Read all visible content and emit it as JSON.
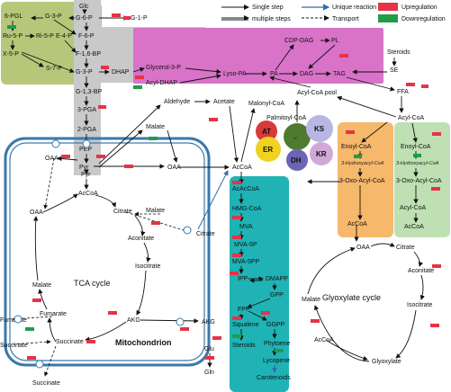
{
  "legend": {
    "single_step": "Single step",
    "multiple_steps": "multiple steps",
    "unique_reaction": "Unique reaction",
    "transport": "Transport",
    "upregulation": "Upregulation",
    "downregulation": "Downregulation",
    "up_color": "#e63347",
    "down_color": "#1f9d49"
  },
  "ppp": {
    "glc": "Glc",
    "6pgl": "6-PGL",
    "g3p": "G-3-P",
    "g6p": "G-6-P",
    "g1p": "G-1-P",
    "ru5p": "Ru-5-P",
    "ri5p": "Ri-5-P",
    "e4p": "E-4-P",
    "f6p": "F-6-P",
    "x5p": "X-5-P",
    "s7p": "S-7-P",
    "f16bp": "F-1,6-BP",
    "g3p2": "G-3-P",
    "dhap": "DHAP",
    "g13bp": "G-1,3-BP",
    "3pga": "3-PGA",
    "2pga": "2-PGA",
    "pep": "PEP",
    "pyr": "Pyr",
    "oaa": "OAA"
  },
  "lipid": {
    "glycerol3p": "Glycerol-3-P",
    "acyldhap": "Acyl-DHAP",
    "lysopa": "Lyso-PA",
    "pa": "PA",
    "dag": "DAG",
    "tag": "TAG",
    "cdpdag": "CDP-DAG",
    "pl": "PL",
    "steroids": "Steroids",
    "se": "SE",
    "ffa": "FFA",
    "acylcoa": "Acyl-CoA",
    "acylcoa_pool": "Acyl-CoA pool",
    "palmitoyl": "Palmitoyl-CoA"
  },
  "central": {
    "aldehyde": "Aldehyde",
    "acetate": "Acetate",
    "malonyl": "Malonyl-CoA",
    "malate": "Malate",
    "oaa2": "OAA",
    "acacoa": "AcAcCoA",
    "hmgcoa": "HMG-CoA",
    "mva": "MVA",
    "mva5p": "MVA-5P",
    "mvapp": "MVA-5PP",
    "ipp": "IPP",
    "dmapp": "DMAPP",
    "gpp": "GPP",
    "fpp": "FPP",
    "ggpp": "GGPP",
    "squalene": "Squalene",
    "phytoene": "Phytoene",
    "steroids2": "Steroids",
    "lycopene": "Lycopene",
    "carotenoids": "Carotenoids",
    "accoa": "AcCoA",
    "glu": "Glu",
    "gln": "Gln"
  },
  "fas": {
    "at": "AT",
    "ks": "KS",
    "er": "ER",
    "kr": "KR",
    "dh": "DH",
    "ac": "AC"
  },
  "beta": {
    "acylcoa1": "Acyl-CoA",
    "enoyl1": "Enoyl-CoA",
    "hydroxy1": "3-Hydroxyacyl-CoA",
    "oxo1": "3-Oxo-Acyl-CoA",
    "accoa1": "AcCoA",
    "acylcoa2": "Acyl-CoA",
    "enoyl2": "Enoyl-CoA",
    "hydroxy2": "3-Hydroxyacyl-CoA",
    "oxo2": "3-Oxo-Acyl-CoA",
    "acylcoa3": "Acyl-CoA"
  },
  "tca": {
    "title": "TCA cycle",
    "pyr": "Pyr",
    "accoa": "AcCoA",
    "oaa": "OAA",
    "citrate": "Citrate",
    "malate": "Malate",
    "aconitate": "Aconitate",
    "isocitrate": "Isocitrate",
    "fumarate": "Fumarate",
    "akg": "AKG",
    "succinate": "Succinate",
    "mito": "Mitochondrion",
    "fumarate_out": "Fumarate",
    "succinate_out": "Succinate",
    "succinate_bottom": "Succinate",
    "malate_out": "Malate",
    "citrate_out": "Citrate",
    "akg_out": "AKG"
  },
  "glyox": {
    "title": "Glyoxylate cycle",
    "oaa": "OAA",
    "citrate": "Citrate",
    "aconitate": "Aconitate",
    "isocitrate": "Isocitrate",
    "malate": "Malate",
    "glyoxylate": "Glyoxylate",
    "accoa": "AcCoA",
    "accoa_in": "AcCoA"
  },
  "colors": {
    "ppp_box": "#b7c77a",
    "glycolysis_box": "#c9c9c9",
    "lipid_box": "#d873c8",
    "mva_box": "#1fb3b5",
    "beta1_box": "#f6b86b",
    "beta2_box": "#bfe0b2",
    "mito_border": "#3a78a8",
    "arrow": "#111111",
    "blue_arrow": "#2a6fb0"
  }
}
